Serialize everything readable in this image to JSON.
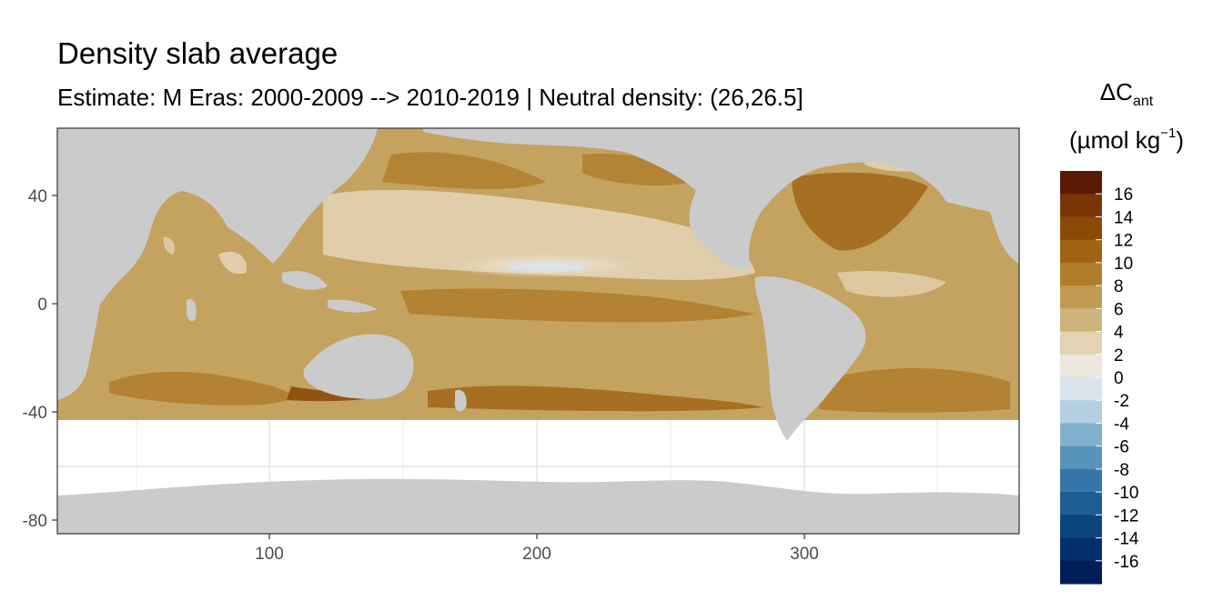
{
  "title": "Density slab average",
  "subtitle": "Estimate: M Eras: 2000-2009 --> 2010-2019 | Neutral density: (26,26.5]",
  "legend": {
    "title_main": "ΔC",
    "title_sub": "ant",
    "unit_prefix": "(µmol kg",
    "unit_sup": "−1",
    "unit_suffix": ")",
    "labels": [
      "16",
      "14",
      "12",
      "10",
      "8",
      "6",
      "4",
      "2",
      "0",
      "-2",
      "-4",
      "-6",
      "-8",
      "-10",
      "-12",
      "-14",
      "-16"
    ],
    "colors": [
      "#5a1a04",
      "#7a3506",
      "#8c4a08",
      "#9f6312",
      "#b07d2a",
      "#c09a50",
      "#cfb37c",
      "#e3d3b2",
      "#ece6dc",
      "#d9e4ec",
      "#b3cfe0",
      "#82b1ce",
      "#5893bb",
      "#3576a7",
      "#1c5d93",
      "#0b467e",
      "#022f6b",
      "#011d58"
    ]
  },
  "axes": {
    "x_ticks": [
      "100",
      "200",
      "300"
    ],
    "y_ticks": [
      "40",
      "0",
      "-40",
      "-80"
    ]
  },
  "colors": {
    "land": "#cbcbcb",
    "no_data": "#ffffff",
    "panel_border": "#333333",
    "grid": "#ebebeb"
  }
}
